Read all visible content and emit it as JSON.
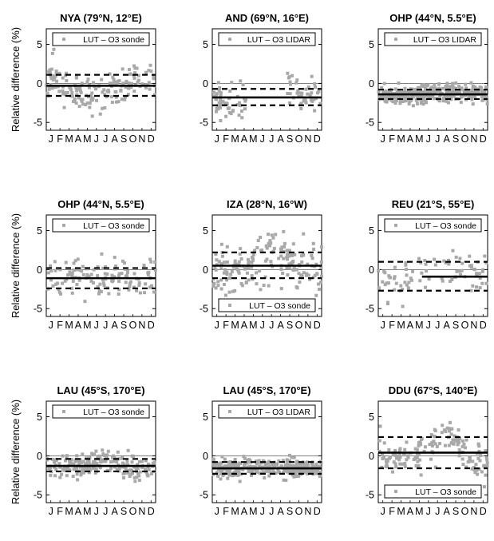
{
  "figure": {
    "ylabel": "Relative difference (%)",
    "month_letters": [
      "J",
      "F",
      "M",
      "A",
      "M",
      "J",
      "J",
      "A",
      "S",
      "O",
      "N",
      "D"
    ],
    "point_color": "#a8a8a8",
    "line_color": "#000000",
    "ytick_labels": [
      "5",
      "0",
      "-5"
    ]
  },
  "chart_data": [
    {
      "type": "scatter",
      "title": "NYA (79°N, 12°E)",
      "ylabel": "Relative difference (%)",
      "ylim": [
        -6,
        7
      ],
      "xlim": [
        0,
        12
      ],
      "yticks": [
        -5,
        0,
        5
      ],
      "legend": {
        "label": "LUT – O3 sonde",
        "placement": "top"
      },
      "mean": -0.3,
      "upper": 1.1,
      "lower": -1.6,
      "mean_x": [
        0,
        12
      ],
      "band_x": [
        0,
        12
      ],
      "seed": 11,
      "npoints": 170,
      "spread": 1.15,
      "points_x_range": [
        0,
        12
      ],
      "trend": [
        [
          0,
          0.6
        ],
        [
          2,
          -0.2
        ],
        [
          4,
          -1.0
        ],
        [
          5.5,
          -1.4
        ],
        [
          7,
          -1.0
        ],
        [
          9,
          -0.5
        ],
        [
          11,
          0.3
        ],
        [
          12,
          0.9
        ]
      ]
    },
    {
      "type": "scatter",
      "title": "AND (69°N, 16°E)",
      "ylabel": "",
      "ylim": [
        -6,
        7
      ],
      "xlim": [
        0,
        12
      ],
      "yticks": [
        -5,
        0,
        5
      ],
      "legend": {
        "label": "LUT – O3 LIDAR",
        "placement": "top"
      },
      "mean": -1.8,
      "upper": -0.7,
      "lower": -2.8,
      "mean_x": [
        0,
        12
      ],
      "band_x": [
        0,
        12
      ],
      "seed": 23,
      "npoints": 95,
      "spread": 1.0,
      "points_x_range": [
        0,
        12
      ],
      "gap": [
        3.7,
        8.1
      ],
      "trend": [
        [
          0,
          -1.7
        ],
        [
          1.5,
          -2.3
        ],
        [
          3,
          -2.8
        ],
        [
          3.7,
          -2.5
        ],
        [
          8.1,
          -1.2
        ],
        [
          10,
          -1.5
        ],
        [
          12,
          -1.3
        ]
      ]
    },
    {
      "type": "scatter",
      "title": "OHP (44°N, 5.5°E)",
      "ylabel": "",
      "ylim": [
        -6,
        7
      ],
      "xlim": [
        0,
        12
      ],
      "yticks": [
        -5,
        0,
        5
      ],
      "legend": {
        "label": "LUT – O3 LIDAR",
        "placement": "top"
      },
      "mean": -1.4,
      "upper": -0.8,
      "lower": -2.0,
      "mean_x": [
        0,
        12
      ],
      "band_x": [
        0,
        12
      ],
      "seed": 37,
      "npoints": 360,
      "spread": 0.55,
      "points_x_range": [
        0,
        12
      ],
      "trend": [
        [
          0,
          -1.7
        ],
        [
          3,
          -1.6
        ],
        [
          6,
          -1.2
        ],
        [
          9,
          -1.3
        ],
        [
          12,
          -1.3
        ]
      ]
    },
    {
      "type": "scatter",
      "title": "OHP (44°N, 5.5°E)",
      "ylabel": "Relative difference (%)",
      "ylim": [
        -6,
        7
      ],
      "xlim": [
        0,
        12
      ],
      "yticks": [
        -5,
        0,
        5
      ],
      "legend": {
        "label": "LUT – O3 sonde",
        "placement": "top"
      },
      "mean": -1.1,
      "upper": 0.2,
      "lower": -2.4,
      "mean_x": [
        0,
        12
      ],
      "band_x": [
        0,
        12
      ],
      "seed": 41,
      "npoints": 120,
      "spread": 1.25,
      "points_x_range": [
        0,
        12
      ],
      "trend": [
        [
          0,
          -1.0
        ],
        [
          6,
          -1.2
        ],
        [
          12,
          -1.0
        ]
      ]
    },
    {
      "type": "scatter",
      "title": "IZA (28°N, 16°W)",
      "ylabel": "",
      "ylim": [
        -6,
        7
      ],
      "xlim": [
        0,
        12
      ],
      "yticks": [
        -5,
        0,
        5
      ],
      "legend": {
        "label": "LUT – O3 sonde",
        "placement": "bottom"
      },
      "mean": 0.5,
      "upper": 2.2,
      "lower": -1.1,
      "mean_x": [
        0,
        12
      ],
      "band_x": [
        0,
        12
      ],
      "seed": 53,
      "npoints": 190,
      "spread": 1.55,
      "points_x_range": [
        0,
        12
      ],
      "trend": [
        [
          0,
          -0.2
        ],
        [
          3,
          0.0
        ],
        [
          5,
          0.8
        ],
        [
          7,
          2.2
        ],
        [
          9,
          0.5
        ],
        [
          12,
          0.0
        ]
      ]
    },
    {
      "type": "scatter",
      "title": "REU (21°S, 55°E)",
      "ylabel": "",
      "ylim": [
        -6,
        7
      ],
      "xlim": [
        0,
        12
      ],
      "yticks": [
        -5,
        0,
        5
      ],
      "legend": {
        "label": "LUT – O3 sonde",
        "placement": "top"
      },
      "mean": -0.9,
      "upper": 1.0,
      "lower": -2.7,
      "mean_x": [
        4.8,
        12
      ],
      "band_x": [
        0,
        12
      ],
      "seed": 67,
      "npoints": 85,
      "spread": 1.35,
      "points_x_range": [
        0,
        12
      ],
      "trend": [
        [
          0,
          -1.2
        ],
        [
          2,
          -2.0
        ],
        [
          4,
          -0.8
        ],
        [
          8,
          0.2
        ],
        [
          12,
          -0.8
        ]
      ]
    },
    {
      "type": "scatter",
      "title": "LAU (45°S, 170°E)",
      "ylabel": "Relative difference (%)",
      "ylim": [
        -6,
        7
      ],
      "xlim": [
        0,
        12
      ],
      "yticks": [
        -5,
        0,
        5
      ],
      "legend": {
        "label": "LUT – O3 sonde",
        "placement": "top"
      },
      "mean": -1.3,
      "upper": -0.4,
      "lower": -2.0,
      "mean_x": [
        0,
        12
      ],
      "band_x": [
        0,
        12
      ],
      "seed": 79,
      "npoints": 210,
      "spread": 0.7,
      "points_x_range": [
        0,
        12
      ],
      "trend": [
        [
          0,
          -1.2
        ],
        [
          3,
          -1.5
        ],
        [
          6,
          -0.6
        ],
        [
          9,
          -1.5
        ],
        [
          12,
          -1.8
        ]
      ]
    },
    {
      "type": "scatter",
      "title": "LAU (45°S, 170°E)",
      "ylabel": "",
      "ylim": [
        -6,
        7
      ],
      "xlim": [
        0,
        12
      ],
      "yticks": [
        -5,
        0,
        5
      ],
      "legend": {
        "label": "LUT – O3 LIDAR",
        "placement": "top"
      },
      "mean": -1.6,
      "upper": -0.8,
      "lower": -2.3,
      "mean_x": [
        0,
        12
      ],
      "band_x": [
        0,
        12
      ],
      "seed": 83,
      "npoints": 330,
      "spread": 0.55,
      "points_x_range": [
        0,
        12
      ],
      "trend": [
        [
          0,
          -1.5
        ],
        [
          6,
          -1.4
        ],
        [
          12,
          -1.7
        ]
      ]
    },
    {
      "type": "scatter",
      "title": "DDU (67°S, 140°E)",
      "ylabel": "",
      "ylim": [
        -6,
        7
      ],
      "xlim": [
        0,
        12
      ],
      "yticks": [
        -5,
        0,
        5
      ],
      "legend": {
        "label": "LUT – O3 sonde",
        "placement": "bottom"
      },
      "mean": 0.4,
      "upper": 2.4,
      "lower": -1.6,
      "mean_x": [
        0,
        12
      ],
      "band_x": [
        0,
        12
      ],
      "seed": 97,
      "npoints": 160,
      "spread": 1.3,
      "points_x_range": [
        0,
        12
      ],
      "trend": [
        [
          0,
          -0.2
        ],
        [
          4,
          -0.3
        ],
        [
          6,
          1.0
        ],
        [
          8,
          2.8
        ],
        [
          10,
          -0.8
        ],
        [
          12,
          -1.8
        ]
      ]
    }
  ]
}
